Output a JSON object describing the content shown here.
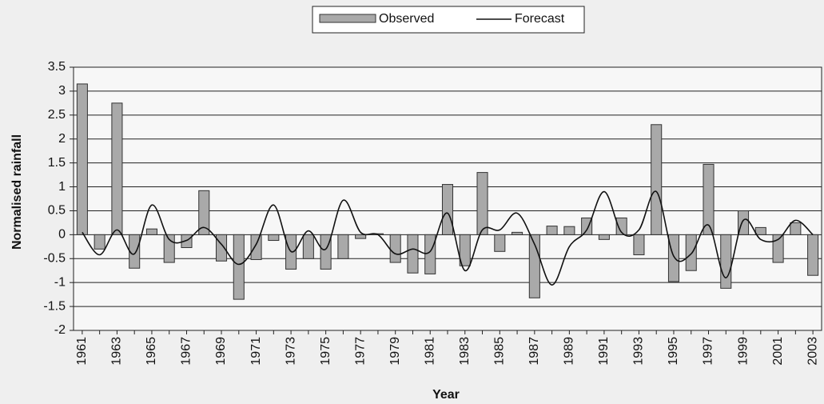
{
  "chart_data": {
    "type": "bar",
    "x_label": "Year",
    "y_label": "Normalised rainfall",
    "categories": [
      "1961",
      null,
      "1963",
      null,
      "1965",
      null,
      "1967",
      null,
      "1969",
      null,
      "1971",
      null,
      "1973",
      null,
      "1975",
      null,
      "1977",
      null,
      "1979",
      null,
      "1981",
      null,
      "1983",
      null,
      "1985",
      null,
      "1987",
      null,
      "1989",
      null,
      "1991",
      null,
      "1993",
      null,
      "1995",
      null,
      "1997",
      null,
      "1999",
      null,
      "2001",
      null,
      "2003"
    ],
    "series": [
      {
        "name": "Observed",
        "type": "bar",
        "color": "#a9a9a9",
        "values": [
          3.15,
          -0.3,
          2.75,
          -0.7,
          0.12,
          -0.58,
          -0.27,
          0.92,
          -0.55,
          -1.35,
          -0.52,
          -0.12,
          -0.72,
          -0.5,
          -0.72,
          -0.5,
          -0.08,
          0.02,
          -0.58,
          -0.8,
          -0.82,
          1.05,
          -0.65,
          1.3,
          -0.35,
          0.05,
          -1.32,
          0.18,
          0.17,
          0.35,
          -0.1,
          0.35,
          -0.42,
          2.3,
          -0.98,
          -0.75,
          1.47,
          -1.12,
          0.5,
          0.15,
          -0.58,
          0.25,
          -0.85
        ]
      },
      {
        "name": "Forecast",
        "type": "line",
        "color": "#111111",
        "values": [
          0.05,
          -0.42,
          0.1,
          -0.4,
          0.62,
          -0.1,
          -0.12,
          0.15,
          -0.2,
          -0.62,
          -0.2,
          0.62,
          -0.35,
          0.08,
          -0.3,
          0.72,
          0.05,
          0.0,
          -0.4,
          -0.3,
          -0.35,
          0.45,
          -0.75,
          0.1,
          0.1,
          0.45,
          -0.2,
          -1.05,
          -0.25,
          0.1,
          0.9,
          0.05,
          0.1,
          0.9,
          -0.45,
          -0.4,
          0.2,
          -0.9,
          0.3,
          -0.1,
          -0.1,
          0.3,
          0.0
        ]
      }
    ],
    "ylim": [
      -2,
      3.5
    ],
    "yticks": [
      -2,
      -1.5,
      -1,
      -0.5,
      0,
      0.5,
      1,
      1.5,
      2,
      2.5,
      3,
      3.5
    ],
    "grid": true,
    "legend": "top"
  }
}
